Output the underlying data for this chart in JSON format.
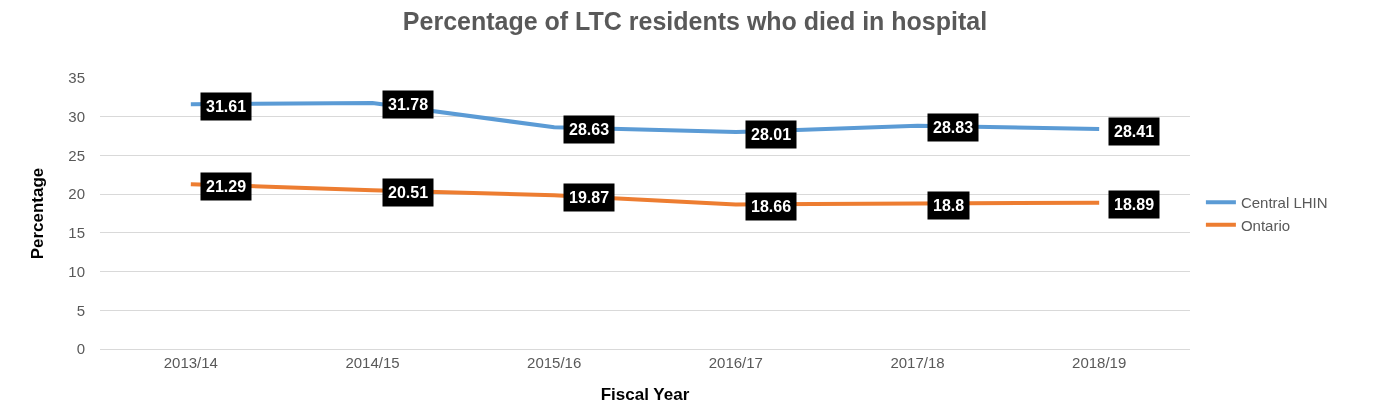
{
  "chart_data": {
    "type": "line",
    "title": "Percentage of LTC residents who died in hospital",
    "xlabel": "Fiscal Year",
    "ylabel": "Percentage",
    "categories": [
      "2013/14",
      "2014/15",
      "2015/16",
      "2016/17",
      "2017/18",
      "2018/19"
    ],
    "series": [
      {
        "name": "Central LHIN",
        "color": "#5b9bd5",
        "values": [
          31.61,
          31.78,
          28.63,
          28.01,
          28.83,
          28.41
        ]
      },
      {
        "name": "Ontario",
        "color": "#ed7d31",
        "values": [
          21.29,
          20.51,
          19.87,
          18.66,
          18.8,
          18.89
        ]
      }
    ],
    "ylim": [
      0,
      35
    ],
    "yticks": [
      0,
      5,
      10,
      15,
      20,
      25,
      30,
      35
    ],
    "grid": "y",
    "legend": "right",
    "marker": "none",
    "line_style": "solid",
    "data_labels": true
  }
}
